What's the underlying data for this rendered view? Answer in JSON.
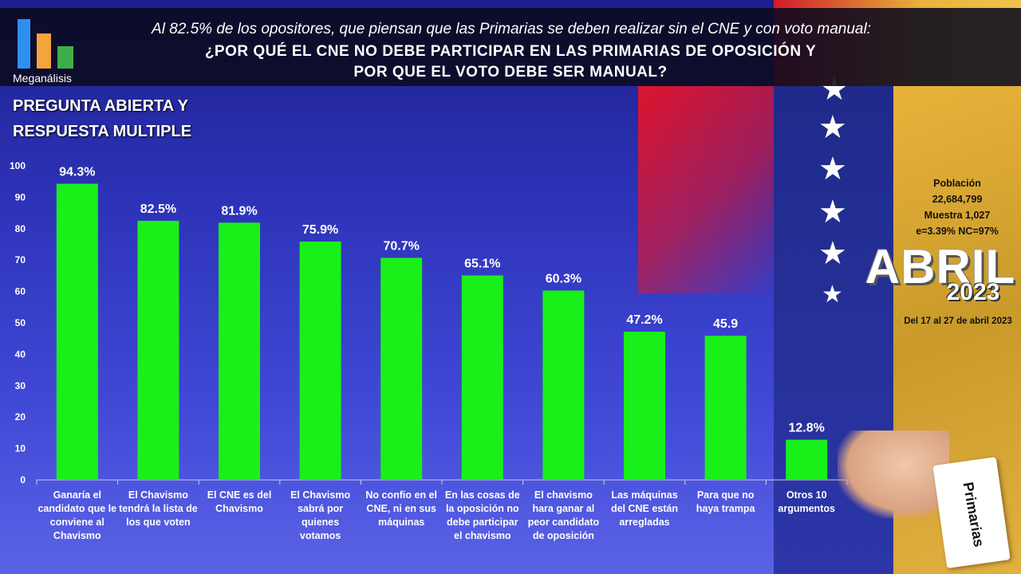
{
  "header": {
    "logo_text": "Meganálisis",
    "subtitle": "Al 82.5% de los opositores, que piensan que las Primarias se deben realizar sin el CNE y con voto manual:",
    "title_line1": "¿POR QUÉ EL CNE NO DEBE PARTICIPAR EN LAS PRIMARIAS DE OPOSICIÓN Y",
    "title_line2": "POR QUE EL VOTO DEBE SER MANUAL?"
  },
  "section": {
    "line1": "PREGUNTA ABIERTA Y",
    "line2": "RESPUESTA MULTIPLE"
  },
  "side": {
    "poblacion_label": "Población",
    "poblacion_value": "22,684,799",
    "muestra": "Muestra 1,027",
    "error": "e=3.39%  NC=97%",
    "month": "ABRIL",
    "year": "2023",
    "dates": "Del 17 al 27 de abril 2023",
    "ballot_label": "Primarias"
  },
  "colors": {
    "bar": "#19f019",
    "background_top": "#1c1f8c",
    "background_bottom": "#5a63e6"
  },
  "chart_data": {
    "type": "bar",
    "categories": [
      "Ganaría el candidato que le conviene al Chavismo",
      "El Chavismo tendrá la lista de los que voten",
      "El CNE es del Chavismo",
      "El Chavismo sabrá por quienes votamos",
      "No confio en el CNE, ni en sus máquinas",
      "En las cosas de la oposición no debe participar el chavismo",
      "El chavismo hara ganar al peor candidato de oposición",
      "Las máquinas del CNE están arregladas",
      "Para que no haya trampa",
      "Otros 10 argumentos"
    ],
    "values": [
      94.3,
      82.5,
      81.9,
      75.9,
      70.7,
      65.1,
      60.3,
      47.2,
      45.9,
      12.8
    ],
    "value_labels": [
      "94.3%",
      "82.5%",
      "81.9%",
      "75.9%",
      "70.7%",
      "65.1%",
      "60.3%",
      "47.2%",
      "45.9",
      "12.8%"
    ],
    "yticks": [
      0,
      10,
      20,
      30,
      40,
      50,
      60,
      70,
      80,
      90,
      100
    ],
    "ylim": [
      0,
      100
    ],
    "grid": false,
    "legend": "none"
  }
}
